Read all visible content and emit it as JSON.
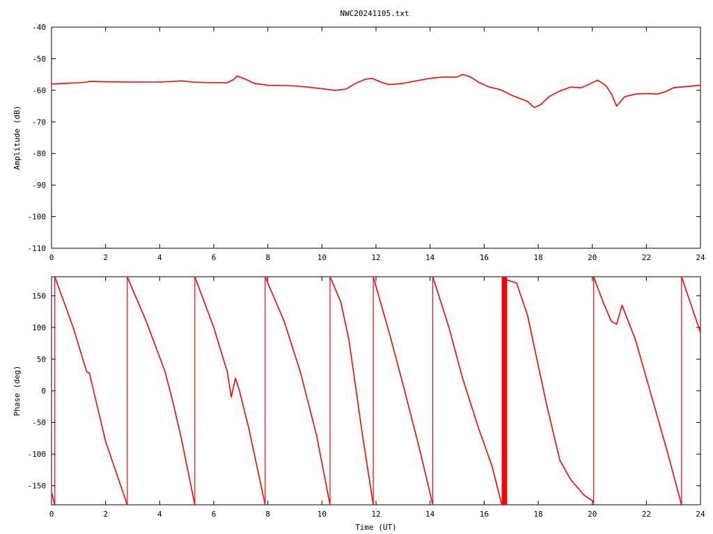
{
  "figure_title": "NWC20241105.txt",
  "chart_data": [
    {
      "type": "line",
      "title": "NWC20241105.txt",
      "xlabel": "",
      "ylabel": "Amplitude (dB)",
      "xlim": [
        0,
        24
      ],
      "ylim": [
        -110,
        -40
      ],
      "xticks": [
        "0",
        "2",
        "4",
        "6",
        "8",
        "10",
        "12",
        "14",
        "16",
        "18",
        "20",
        "22",
        "24"
      ],
      "yticks": [
        "-40",
        "-50",
        "-60",
        "-70",
        "-80",
        "-90",
        "-100",
        "-110"
      ],
      "grid": false,
      "series_color": "#ff0000",
      "series": [
        {
          "x": [
            0,
            0.5,
            1,
            1.3,
            1.4,
            2,
            3,
            4,
            4.5,
            4.8,
            5.2,
            6,
            6.5,
            6.75,
            6.85,
            7.1,
            7.5,
            8,
            8.5,
            9,
            9.5,
            10,
            10.5,
            10.9,
            11.2,
            11.6,
            11.85,
            12.2,
            12.5,
            13,
            13.5,
            14,
            14.5,
            15,
            15.2,
            15.5,
            15.8,
            16.2,
            16.6,
            17,
            17.3,
            17.6,
            17.85,
            18.1,
            18.4,
            18.8,
            19.2,
            19.6,
            19.9,
            20.2,
            20.5,
            20.7,
            20.9,
            21.2,
            21.6,
            22,
            22.4,
            22.7,
            23,
            23.5,
            24
          ],
          "y": [
            -58,
            -57.8,
            -57.6,
            -57.4,
            -57.2,
            -57.3,
            -57.4,
            -57.4,
            -57.2,
            -57.0,
            -57.4,
            -57.6,
            -57.6,
            -56.5,
            -55.5,
            -56.2,
            -57.8,
            -58.4,
            -58.5,
            -58.6,
            -59.0,
            -59.5,
            -60,
            -59.6,
            -58,
            -56.5,
            -56.2,
            -57.5,
            -58.2,
            -57.8,
            -57,
            -56.2,
            -55.8,
            -55.8,
            -55,
            -55.8,
            -57.5,
            -59,
            -59.8,
            -61.5,
            -62.5,
            -63.5,
            -65.5,
            -64.5,
            -62,
            -60.2,
            -59,
            -59.2,
            -58,
            -56.8,
            -58.5,
            -61,
            -65,
            -62,
            -61.2,
            -61.0,
            -61.2,
            -60.5,
            -59.2,
            -58.8,
            -58.4
          ]
        }
      ]
    },
    {
      "type": "line",
      "title": "",
      "xlabel": "Time (UT)",
      "ylabel": "Phase (deg)",
      "xlim": [
        0,
        24
      ],
      "ylim": [
        -180,
        180
      ],
      "xticks": [
        "0",
        "2",
        "4",
        "6",
        "8",
        "10",
        "12",
        "14",
        "16",
        "18",
        "20",
        "22",
        "24"
      ],
      "yticks": [
        "150",
        "100",
        "50",
        "0",
        "-50",
        "-100",
        "-150"
      ],
      "grid": false,
      "series_color": "#ff0000",
      "segments": [
        {
          "x": [
            0,
            0.12
          ],
          "y": [
            -160,
            -180
          ]
        },
        {
          "x": [
            0.12,
            0.8,
            1.3,
            1.4,
            2.0,
            2.8
          ],
          "y": [
            180,
            100,
            30,
            28,
            -80,
            -180
          ]
        },
        {
          "x": [
            2.8,
            3.5,
            4.2,
            4.5,
            4.8,
            5.3
          ],
          "y": [
            180,
            110,
            30,
            -20,
            -75,
            -180
          ]
        },
        {
          "x": [
            5.3,
            6.0,
            6.5,
            6.65,
            6.8,
            6.95,
            7.3,
            7.9
          ],
          "y": [
            180,
            100,
            30,
            -10,
            20,
            0,
            -60,
            -180
          ]
        },
        {
          "x": [
            7.9,
            8.6,
            9.2,
            9.8,
            10.3
          ],
          "y": [
            180,
            110,
            30,
            -70,
            -180
          ]
        },
        {
          "x": [
            10.3,
            10.7,
            11.0,
            11.5,
            11.9
          ],
          "y": [
            180,
            140,
            80,
            -70,
            -180
          ]
        },
        {
          "x": [
            11.9,
            12.5,
            13.0,
            13.6,
            14.1
          ],
          "y": [
            180,
            90,
            10,
            -90,
            -180
          ]
        },
        {
          "x": [
            14.1,
            14.7,
            15.2,
            15.8,
            16.3,
            16.65
          ],
          "y": [
            180,
            100,
            20,
            -60,
            -120,
            -180
          ]
        },
        {
          "x": [
            16.85,
            17.2,
            17.6,
            17.9,
            18.3,
            18.8,
            19.2,
            19.7,
            20.05
          ],
          "y": [
            175,
            170,
            120,
            60,
            -20,
            -110,
            -140,
            -165,
            -175
          ]
        },
        {
          "x": [
            20.05,
            20.4,
            20.7,
            20.9,
            21.1,
            21.6,
            22.2,
            22.8,
            23.3
          ],
          "y": [
            180,
            140,
            110,
            105,
            135,
            80,
            -10,
            -100,
            -180
          ]
        },
        {
          "x": [
            23.3,
            23.7,
            24
          ],
          "y": [
            180,
            130,
            92
          ]
        }
      ],
      "wrap_x": [
        0.12,
        2.8,
        5.3,
        7.9,
        10.3,
        11.9,
        14.1,
        20.05,
        23.3
      ],
      "noise_band_x": [
        16.65,
        16.85
      ]
    }
  ]
}
